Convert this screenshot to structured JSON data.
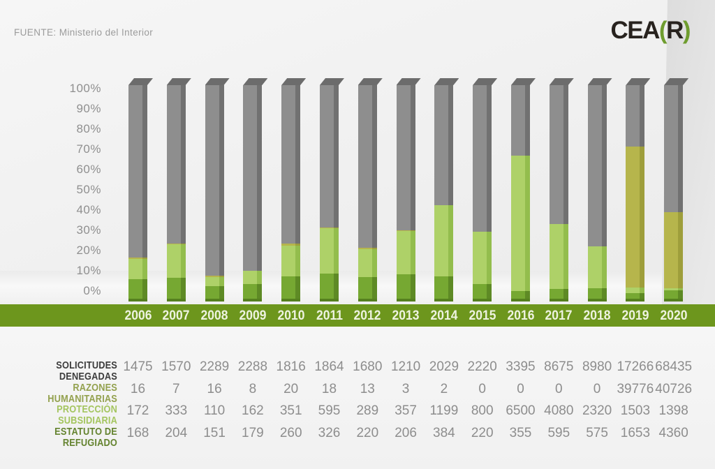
{
  "source_note": "FUENTE: Ministerio del Interior",
  "logo": {
    "cea": "CEA",
    "open_paren": "(",
    "r": "R",
    "close_paren": ")",
    "dark_color": "#28231f",
    "green_color": "#6f9d2f"
  },
  "chart_data": {
    "type": "bar",
    "stacked": true,
    "percent_of_total": true,
    "title": "",
    "xlabel": "",
    "ylabel": "",
    "ylim": [
      0,
      100
    ],
    "grid": false,
    "legend_position": "table-row-labels",
    "y_ticks": [
      "100%",
      "90%",
      "80%",
      "70%",
      "60%",
      "50%",
      "40%",
      "30%",
      "20%",
      "10%",
      "0%"
    ],
    "categories": [
      "2006",
      "2007",
      "2008",
      "2009",
      "2010",
      "2011",
      "2012",
      "2013",
      "2014",
      "2015",
      "2016",
      "2017",
      "2018",
      "2019",
      "2020"
    ],
    "series": [
      {
        "name": "SOLICITUDES DENEGADAS",
        "label_color": "#3c3c3c",
        "bar_color": "#8e8e8e",
        "bar_side_color": "#717171",
        "values": [
          1475,
          1570,
          2289,
          2288,
          1816,
          1864,
          1680,
          1210,
          2029,
          2220,
          3395,
          8675,
          8980,
          17266,
          68435
        ]
      },
      {
        "name": "RAZONES HUMANITARIAS",
        "label_color": "#93a14e",
        "bar_color": "#b6b54c",
        "bar_side_color": "#9e9e3b",
        "values": [
          16,
          7,
          16,
          8,
          20,
          18,
          13,
          3,
          2,
          0,
          0,
          0,
          0,
          39776,
          40726
        ]
      },
      {
        "name": "PROTECCIÓN SUBSIDIARIA",
        "label_color": "#a4c55f",
        "bar_color": "#aed168",
        "bar_side_color": "#93bd4d",
        "values": [
          172,
          333,
          110,
          162,
          351,
          595,
          289,
          357,
          1199,
          800,
          6500,
          4080,
          2320,
          1503,
          1398
        ]
      },
      {
        "name": "ESTATUTO DE REFUGIADO",
        "label_color": "#64832f",
        "bar_color": "#76a832",
        "bar_side_color": "#5e8a25",
        "values": [
          168,
          204,
          151,
          179,
          260,
          326,
          220,
          206,
          384,
          220,
          355,
          595,
          575,
          1653,
          4360
        ]
      }
    ],
    "stack_order_bottom_to_top": [
      "ESTATUTO DE REFUGIADO",
      "PROTECCIÓN SUBSIDIARIA",
      "RAZONES HUMANITARIAS",
      "SOLICITUDES DENEGADAS"
    ],
    "bar_top_face_color": "#6c6c6c",
    "bar_bottom_bevel_color": "#55801f"
  },
  "axis_band": {
    "color": "#6d961d",
    "text_color": "#eef3e0"
  }
}
